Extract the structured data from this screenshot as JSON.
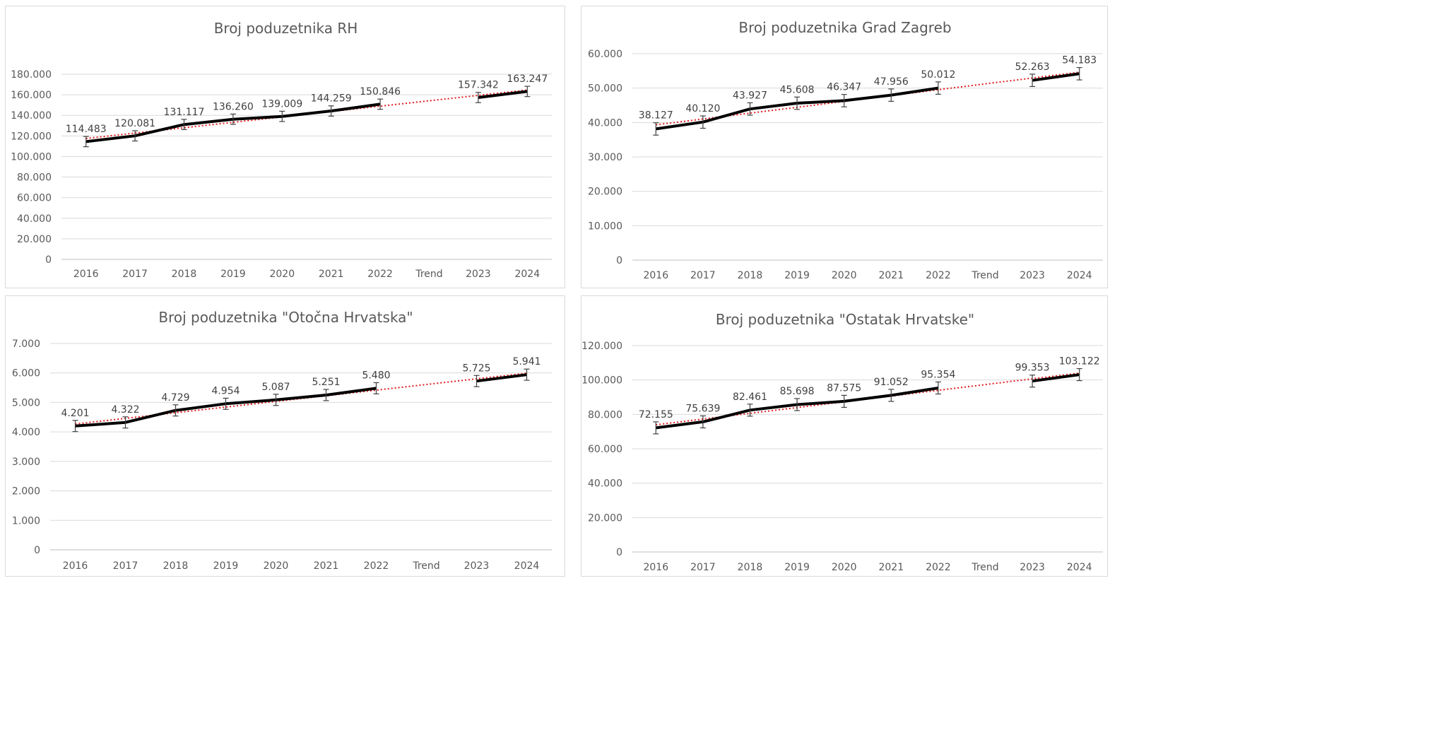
{
  "chart_data": [
    {
      "type": "line",
      "title": "Broj poduzetnika RH",
      "categories": [
        "2016",
        "2017",
        "2018",
        "2019",
        "2020",
        "2021",
        "2022",
        "Trend",
        "2023",
        "2024"
      ],
      "values": [
        114483,
        120081,
        131117,
        136260,
        139009,
        144259,
        150846,
        null,
        157342,
        163247
      ],
      "data_labels": [
        "114.483",
        "120.081",
        "131.117",
        "136.260",
        "139.009",
        "144.259",
        "150.846",
        "",
        "157.342",
        "163.247"
      ],
      "y_ticks": [
        "0",
        "20.000",
        "40.000",
        "60.000",
        "80.000",
        "100.000",
        "120.000",
        "140.000",
        "160.000",
        "180.000"
      ],
      "ylim": [
        0,
        180000
      ],
      "error_bar": 5000,
      "series_color": "#000000",
      "trendline": "linear",
      "trendline_color": "#e31a1c",
      "grid": true
    },
    {
      "type": "line",
      "title": "Broj poduzetnika Grad Zagreb",
      "categories": [
        "2016",
        "2017",
        "2018",
        "2019",
        "2020",
        "2021",
        "2022",
        "Trend",
        "2023",
        "2024"
      ],
      "values": [
        38127,
        40120,
        43927,
        45608,
        46347,
        47956,
        50012,
        null,
        52263,
        54183
      ],
      "data_labels": [
        "38.127",
        "40.120",
        "43.927",
        "45.608",
        "46.347",
        "47.956",
        "50.012",
        "",
        "52.263",
        "54.183"
      ],
      "y_ticks": [
        "0",
        "10.000",
        "20.000",
        "30.000",
        "40.000",
        "50.000",
        "60.000"
      ],
      "ylim": [
        0,
        60000
      ],
      "error_bar": 1800,
      "series_color": "#000000",
      "trendline": "linear",
      "trendline_color": "#e31a1c",
      "grid": true
    },
    {
      "type": "line",
      "title": "Broj poduzetnika \"Otočna Hrvatska\"",
      "categories": [
        "2016",
        "2017",
        "2018",
        "2019",
        "2020",
        "2021",
        "2022",
        "Trend",
        "2023",
        "2024"
      ],
      "values": [
        4201,
        4322,
        4729,
        4954,
        5087,
        5251,
        5480,
        null,
        5725,
        5941
      ],
      "data_labels": [
        "4.201",
        "4.322",
        "4.729",
        "4.954",
        "5.087",
        "5.251",
        "5.480",
        "",
        "5.725",
        "5.941"
      ],
      "y_ticks": [
        "0",
        "1.000",
        "2.000",
        "3.000",
        "4.000",
        "5.000",
        "6.000",
        "7.000"
      ],
      "ylim": [
        0,
        7000
      ],
      "error_bar": 190,
      "series_color": "#000000",
      "trendline": "linear",
      "trendline_color": "#e31a1c",
      "grid": true
    },
    {
      "type": "line",
      "title": "Broj poduzetnika \"Ostatak Hrvatske\"",
      "categories": [
        "2016",
        "2017",
        "2018",
        "2019",
        "2020",
        "2021",
        "2022",
        "Trend",
        "2023",
        "2024"
      ],
      "values": [
        72155,
        75639,
        82461,
        85698,
        87575,
        91052,
        95354,
        null,
        99353,
        103122
      ],
      "data_labels": [
        "72.155",
        "75.639",
        "82.461",
        "85.698",
        "87.575",
        "91.052",
        "95.354",
        "",
        "99.353",
        "103.122"
      ],
      "y_ticks": [
        "0",
        "20.000",
        "40.000",
        "60.000",
        "80.000",
        "100.000",
        "120.000"
      ],
      "ylim": [
        0,
        120000
      ],
      "error_bar": 3500,
      "series_color": "#000000",
      "trendline": "linear",
      "trendline_color": "#e31a1c",
      "grid": true
    }
  ]
}
